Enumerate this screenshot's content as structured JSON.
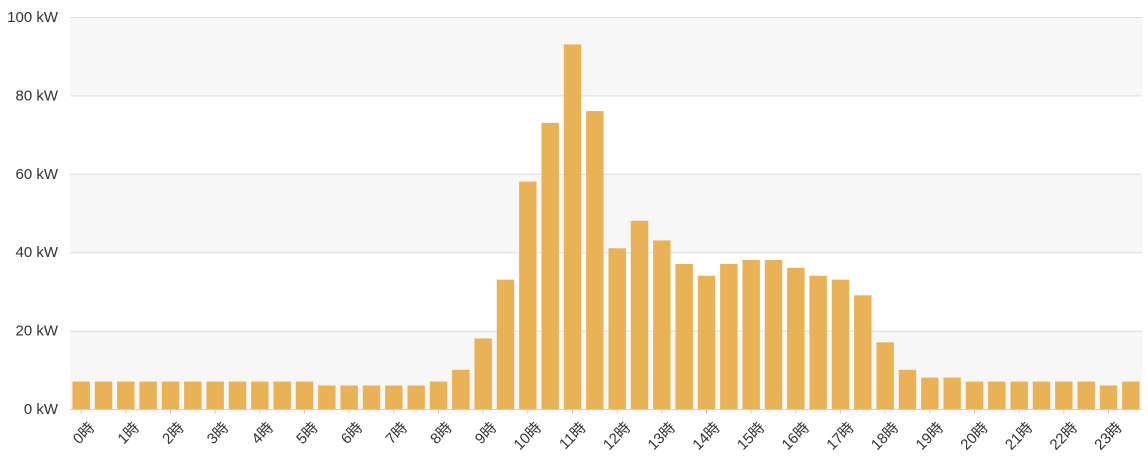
{
  "chart_data": {
    "type": "bar",
    "title": "",
    "xlabel": "",
    "ylabel": "",
    "unit": "kW",
    "ylim": [
      0,
      100
    ],
    "y_ticks": [
      0,
      20,
      40,
      60,
      80,
      100
    ],
    "y_tick_labels": [
      "0 kW",
      "20 kW",
      "40 kW",
      "60 kW",
      "80 kW",
      "100 kW"
    ],
    "x_tick_labels": [
      "0時",
      "1時",
      "2時",
      "3時",
      "4時",
      "5時",
      "6時",
      "7時",
      "8時",
      "9時",
      "10時",
      "11時",
      "12時",
      "13時",
      "14時",
      "15時",
      "16時",
      "17時",
      "18時",
      "19時",
      "20時",
      "21時",
      "22時",
      "23時"
    ],
    "interval_minutes": 30,
    "values": [
      7,
      7,
      7,
      7,
      7,
      7,
      7,
      7,
      7,
      7,
      7,
      6,
      6,
      6,
      6,
      6,
      7,
      10,
      18,
      33,
      58,
      73,
      93,
      76,
      41,
      48,
      43,
      37,
      34,
      37,
      38,
      38,
      36,
      34,
      33,
      29,
      17,
      10,
      8,
      8,
      7,
      7,
      7,
      7,
      7,
      7,
      6,
      7
    ],
    "bar_color": "#eab256",
    "grid": true,
    "alternating_bands": true,
    "band_color": "#f7f7f7",
    "legend": "none"
  }
}
